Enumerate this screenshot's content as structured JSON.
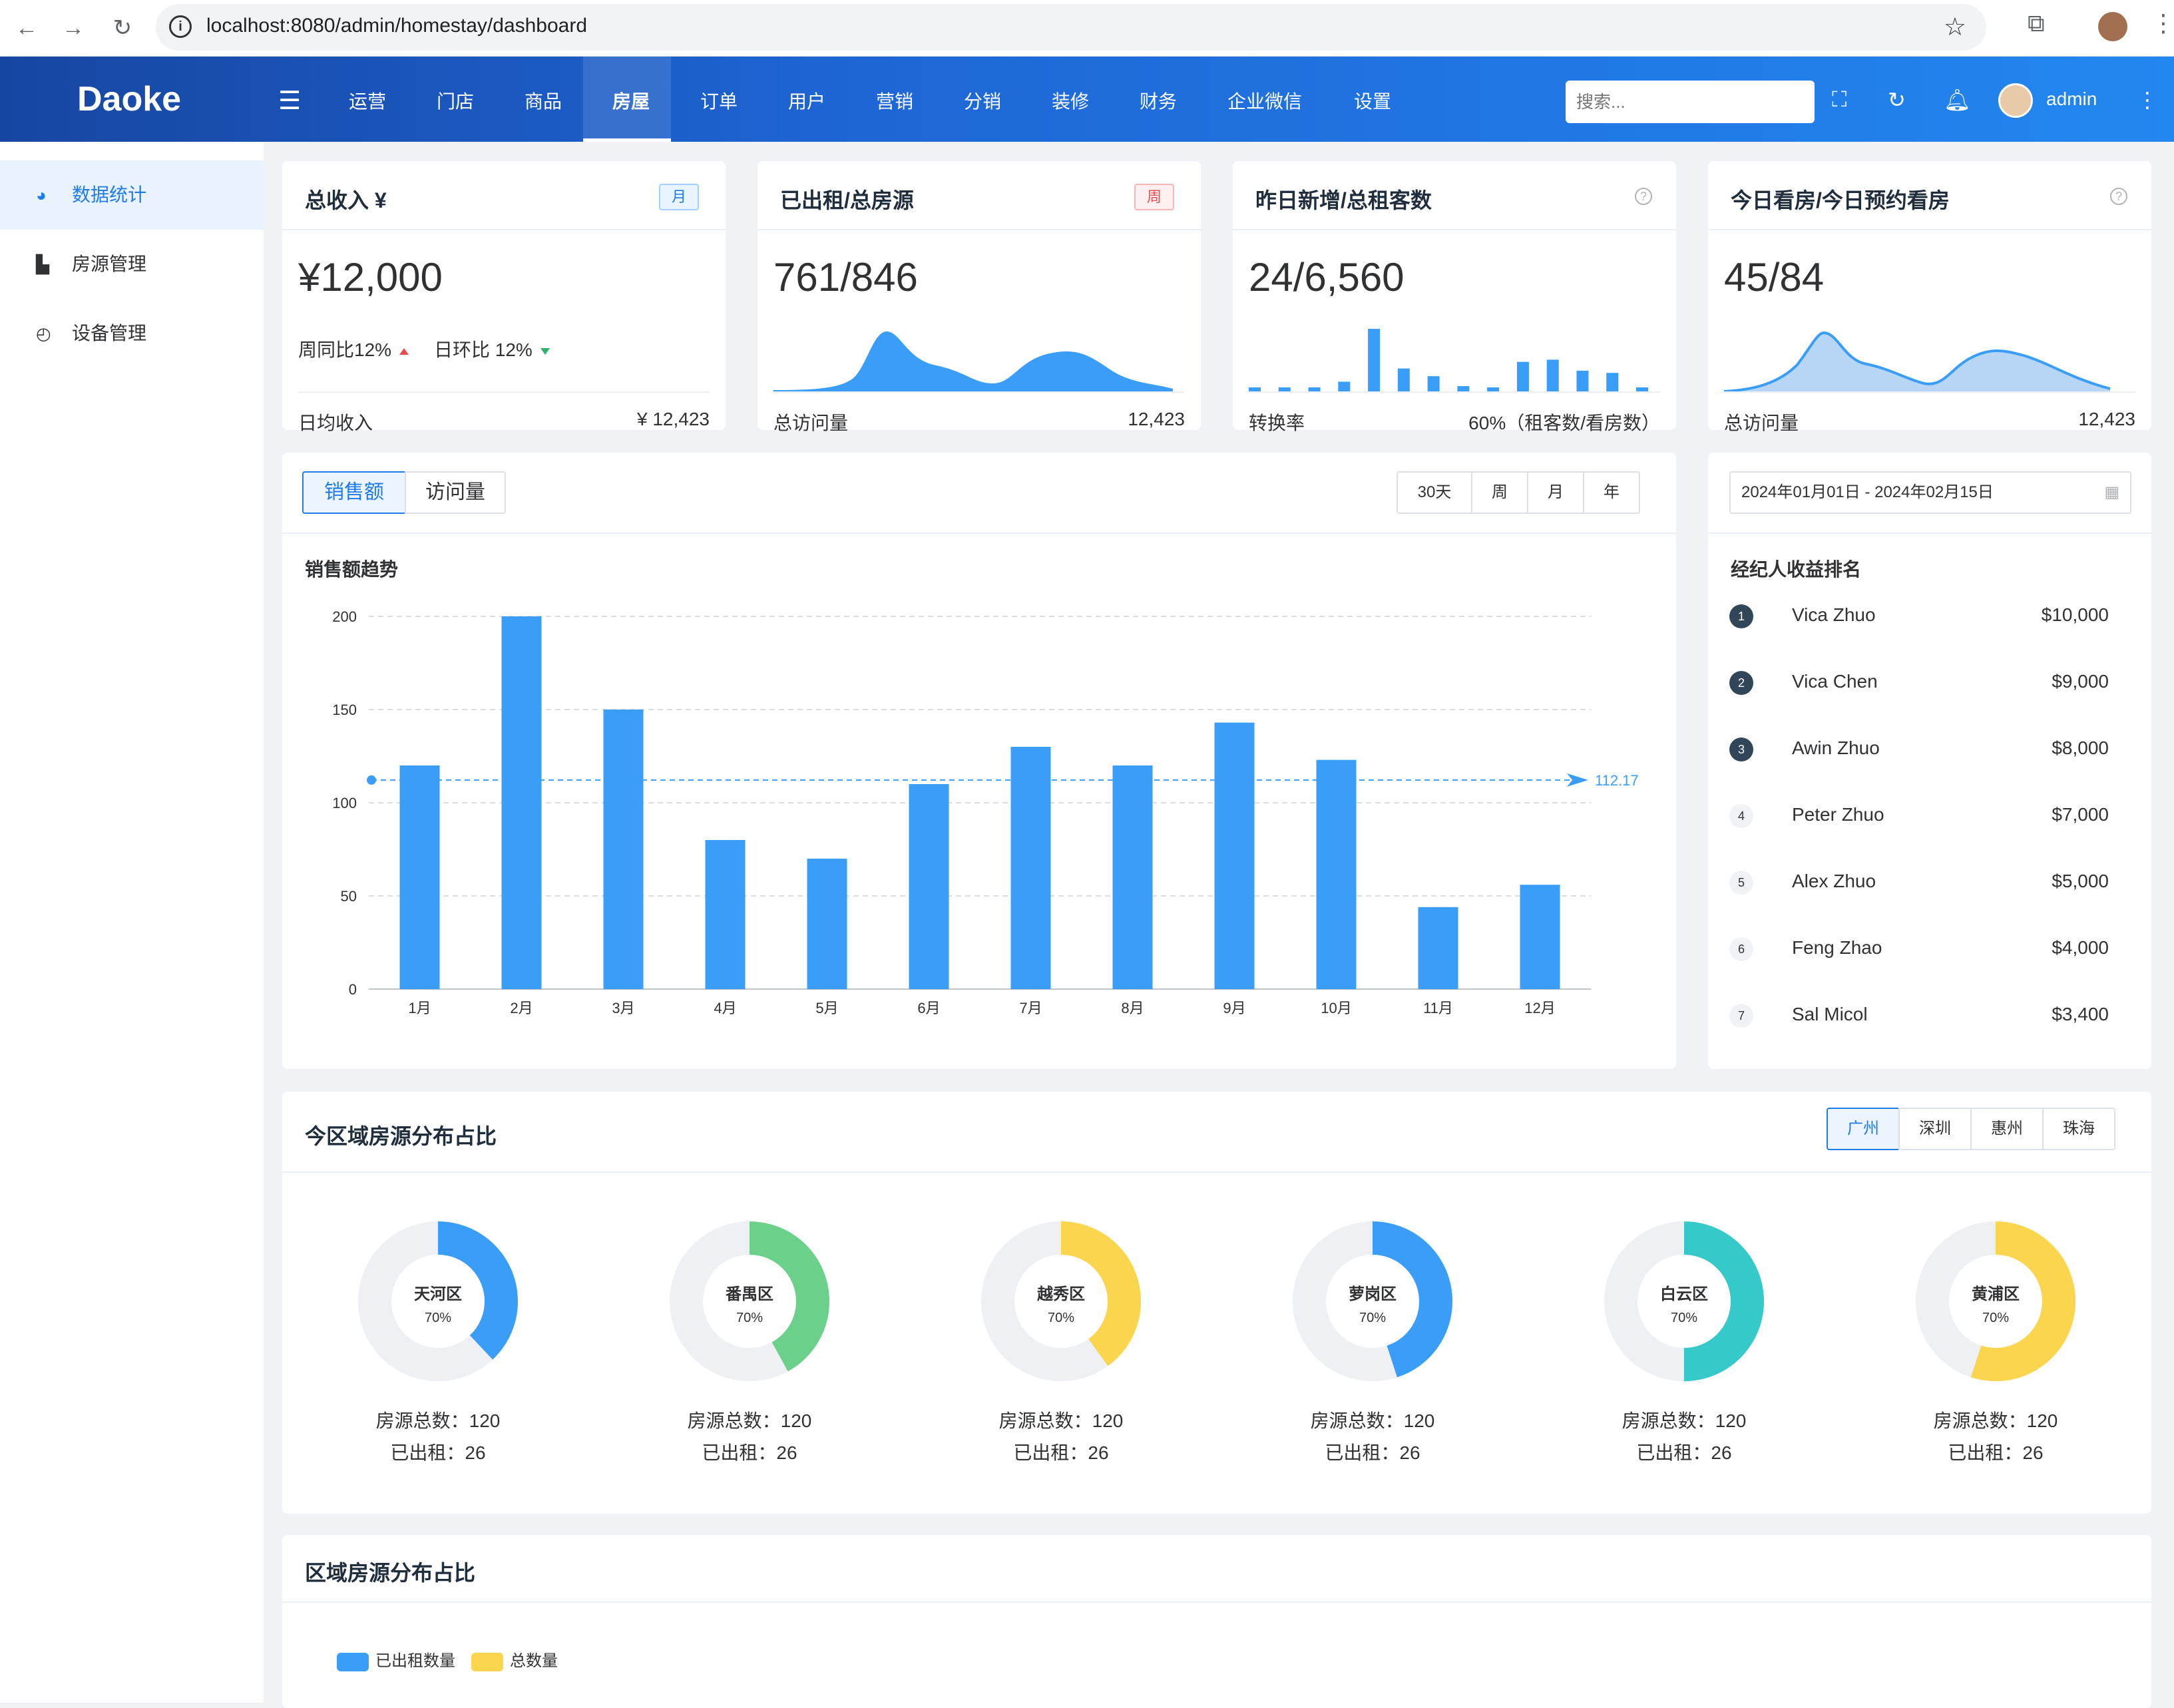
{
  "browser": {
    "url": "localhost:8080/admin/homestay/dashboard"
  },
  "app": {
    "logo": "Daoke",
    "search_placeholder": "搜索...",
    "user": "admin",
    "nav": [
      "运营",
      "门店",
      "商品",
      "房屋",
      "订单",
      "用户",
      "营销",
      "分销",
      "装修",
      "财务",
      "企业微信",
      "设置"
    ],
    "active_nav": "房屋"
  },
  "sidebar": {
    "items": [
      {
        "label": "数据统计",
        "icon": "pie-chart-icon",
        "active": true
      },
      {
        "label": "房源管理",
        "icon": "bar-chart-icon",
        "active": false
      },
      {
        "label": "设备管理",
        "icon": "gauge-icon",
        "active": false
      }
    ]
  },
  "stats": [
    {
      "title": "总收入 ¥",
      "tag": "月",
      "value": "¥12,000",
      "week_label": "周同比12%",
      "day_label": "日环比 12%",
      "footer_label": "日均收入",
      "footer_value": "¥ 12,423"
    },
    {
      "title": "已出租/总房源",
      "tag": "周",
      "value": "761/846",
      "footer_label": "总访问量",
      "footer_value": "12,423"
    },
    {
      "title": "昨日新增/总租客数",
      "value": "24/6,560",
      "footer_label": "转换率",
      "footer_value": "60%（租客数/看房数）",
      "mini_bars": [
        4,
        4,
        4,
        10,
        58,
        22,
        15,
        6,
        4,
        28,
        30,
        20,
        18,
        4
      ]
    },
    {
      "title": "今日看房/今日预约看房",
      "value": "45/84",
      "footer_label": "总访问量",
      "footer_value": "12,423"
    }
  ],
  "sales": {
    "tabs": [
      "销售额",
      "访问量"
    ],
    "active_tab": "销售额",
    "ranges": [
      "30天",
      "周",
      "月",
      "年"
    ],
    "subtitle": "销售额趋势"
  },
  "chart_data": {
    "type": "bar",
    "categories": [
      "1月",
      "2月",
      "3月",
      "4月",
      "5月",
      "6月",
      "7月",
      "8月",
      "9月",
      "10月",
      "11月",
      "12月"
    ],
    "values": [
      120,
      200,
      150,
      80,
      70,
      110,
      130,
      120,
      143,
      123,
      44,
      56
    ],
    "yticks": [
      0,
      50,
      100,
      150,
      200
    ],
    "ylim": [
      0,
      200
    ],
    "average_line": 112.17,
    "average_label": "112.17",
    "color": "#3a9ef8"
  },
  "ranking": {
    "date_range": "2024年01月01日 - 2024年02月15日",
    "title": "经纪人收益排名",
    "items": [
      {
        "rank": "1",
        "name": "Vica Zhuo",
        "value": "$10,000"
      },
      {
        "rank": "2",
        "name": "Vica Chen",
        "value": "$9,000"
      },
      {
        "rank": "3",
        "name": "Awin Zhuo",
        "value": "$8,000"
      },
      {
        "rank": "4",
        "name": "Peter Zhuo",
        "value": "$7,000"
      },
      {
        "rank": "5",
        "name": "Alex Zhuo",
        "value": "$5,000"
      },
      {
        "rank": "6",
        "name": "Feng Zhao",
        "value": "$4,000"
      },
      {
        "rank": "7",
        "name": "Sal Micol",
        "value": "$3,400"
      }
    ]
  },
  "region": {
    "title": "今区域房源分布占比",
    "cities": [
      "广州",
      "深圳",
      "惠州",
      "珠海"
    ],
    "active_city": "广州",
    "items": [
      {
        "name": "天河区",
        "pct": "70%",
        "fraction": 0.38,
        "color": "#3a9ef8",
        "total": "房源总数：120",
        "rented": "已出租：26"
      },
      {
        "name": "番禺区",
        "pct": "70%",
        "fraction": 0.42,
        "color": "#6bd08a",
        "total": "房源总数：120",
        "rented": "已出租：26"
      },
      {
        "name": "越秀区",
        "pct": "70%",
        "fraction": 0.4,
        "color": "#fcd54f",
        "total": "房源总数：120",
        "rented": "已出租：26"
      },
      {
        "name": "萝岗区",
        "pct": "70%",
        "fraction": 0.45,
        "color": "#3a9ef8",
        "total": "房源总数：120",
        "rented": "已出租：26"
      },
      {
        "name": "白云区",
        "pct": "70%",
        "fraction": 0.5,
        "color": "#35c9c9",
        "total": "房源总数：120",
        "rented": "已出租：26"
      },
      {
        "name": "黄浦区",
        "pct": "70%",
        "fraction": 0.55,
        "color": "#fcd54f",
        "total": "房源总数：120",
        "rented": "已出租：26"
      }
    ]
  },
  "region2": {
    "title": "区域房源分布占比",
    "legend": [
      {
        "label": "已出租数量",
        "color": "#3a9ef8"
      },
      {
        "label": "总数量",
        "color": "#fcd54f"
      }
    ]
  }
}
